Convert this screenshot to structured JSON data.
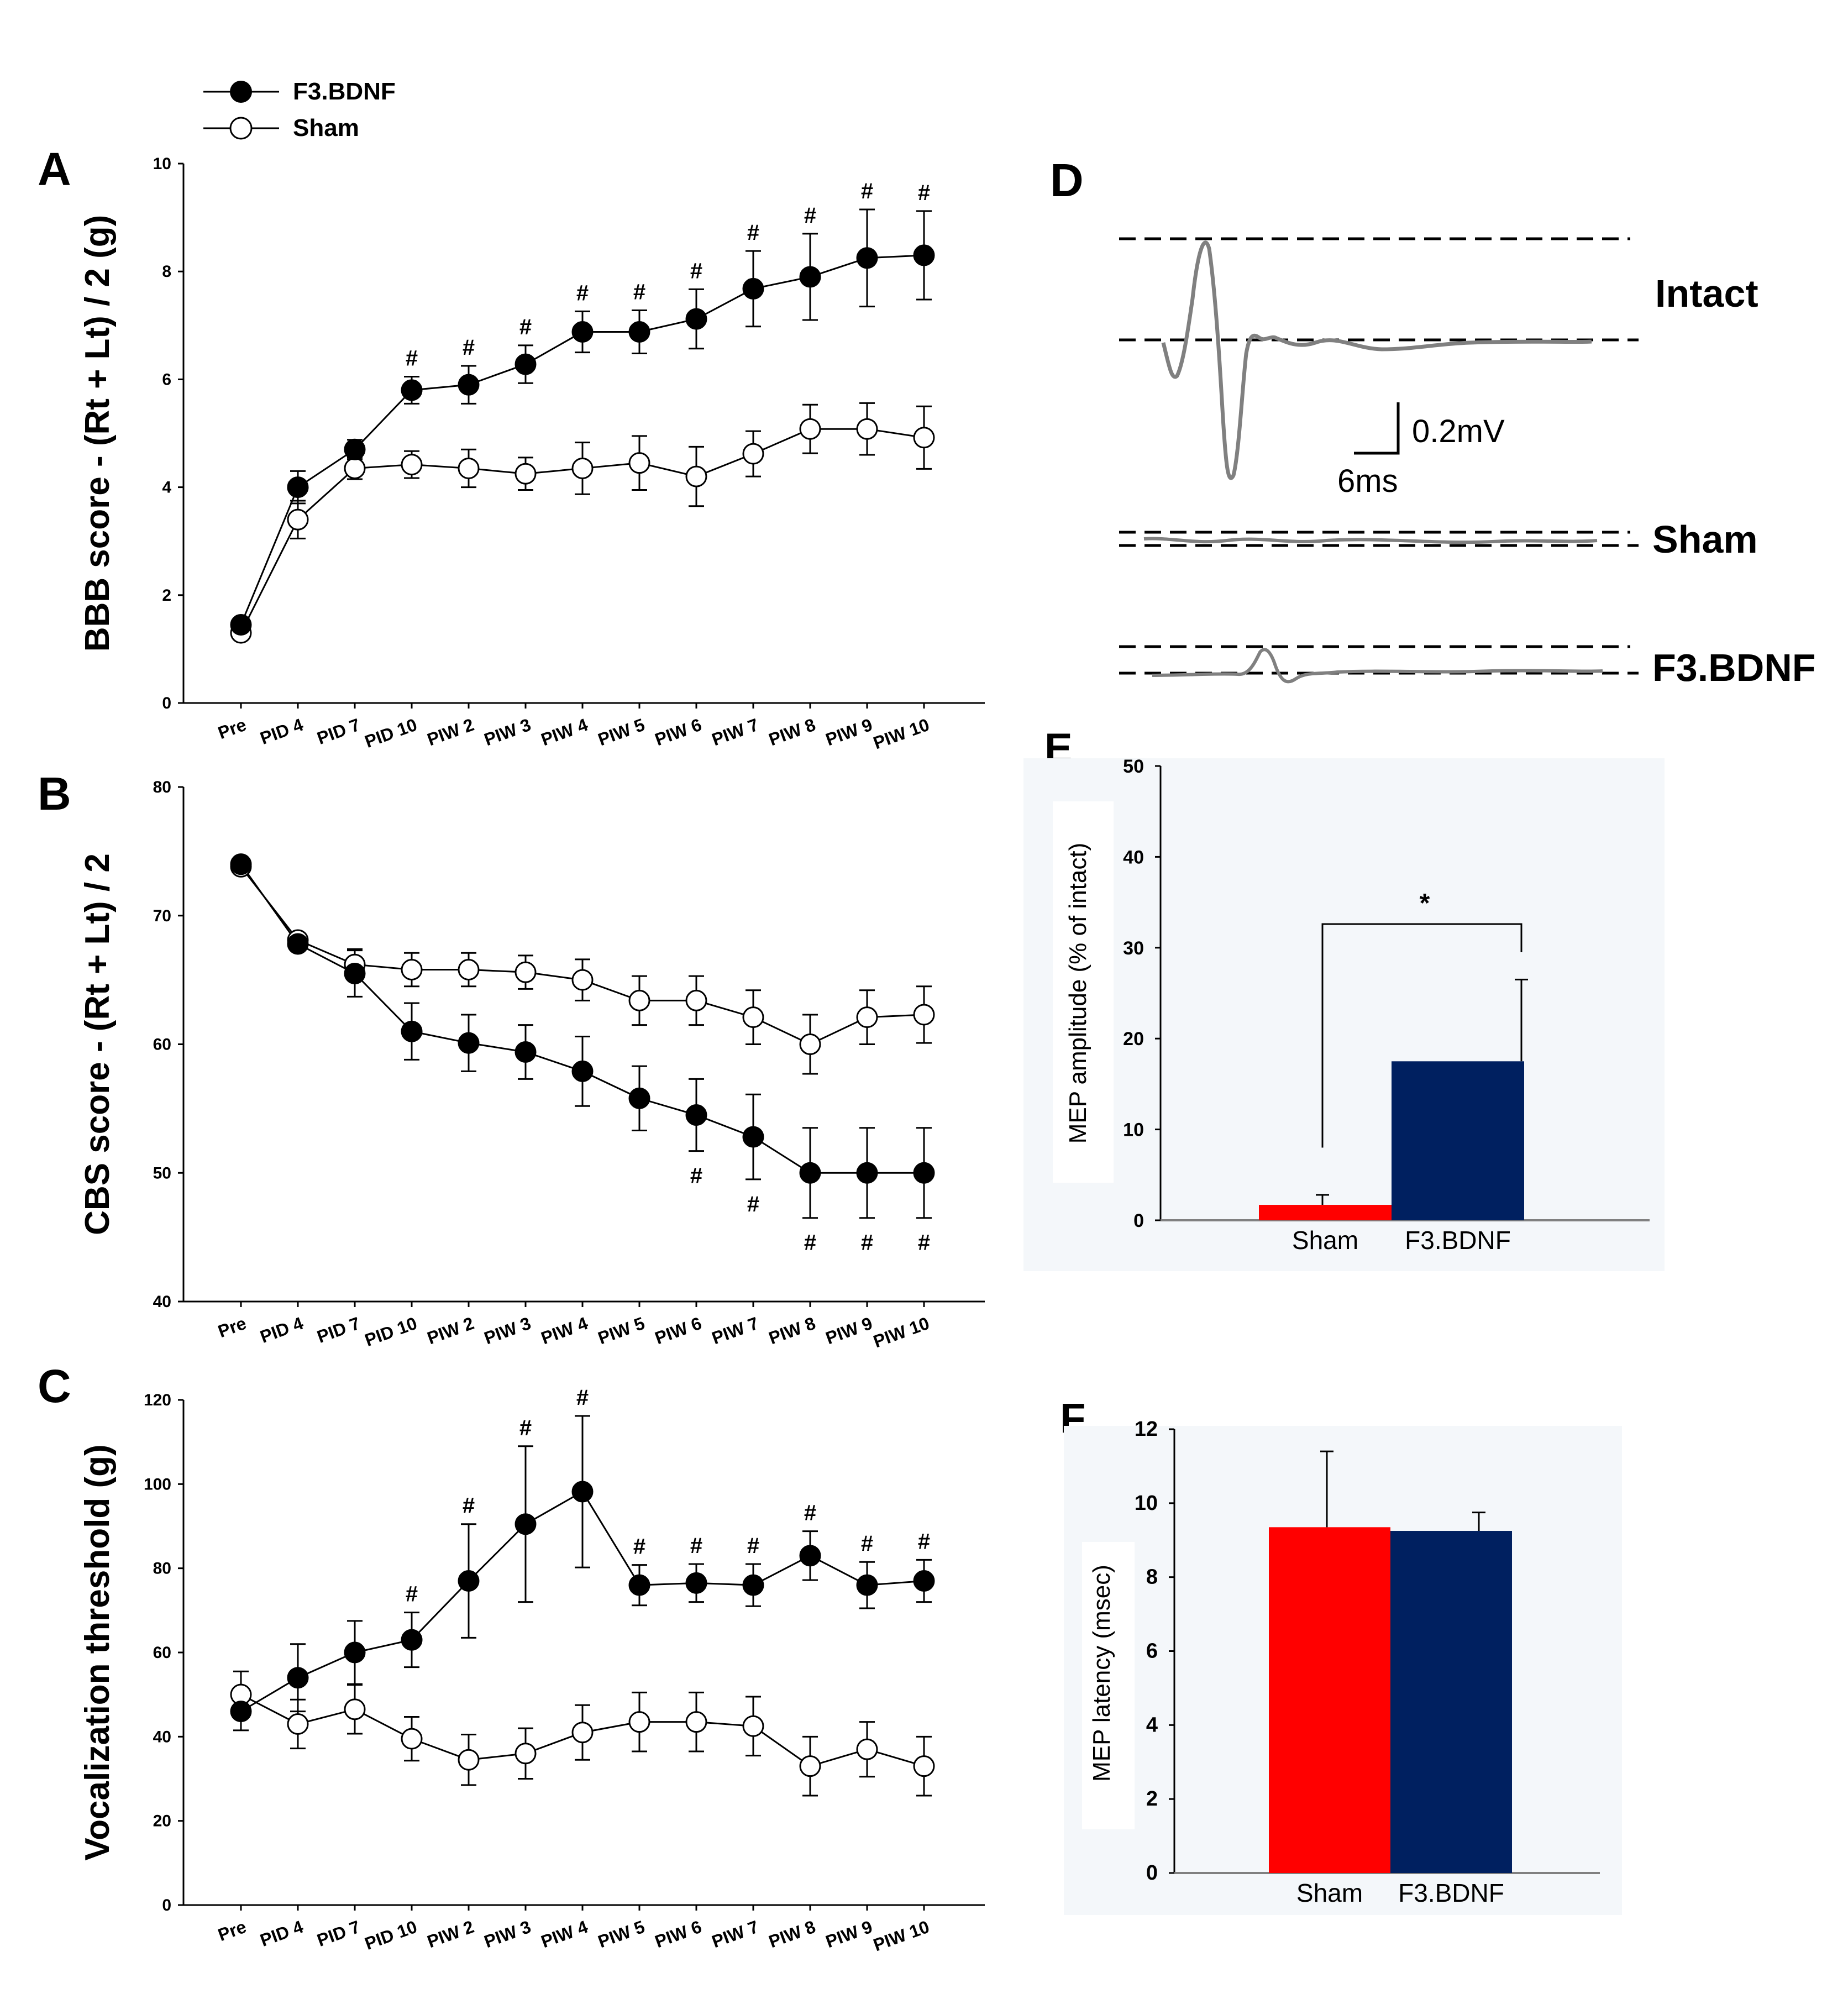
{
  "legend": {
    "entries": [
      {
        "label": "F3.BDNF",
        "marker": "filled"
      },
      {
        "label": "Sham",
        "marker": "open"
      }
    ]
  },
  "colors": {
    "sham": "#ff0000",
    "bdnf": "#002060",
    "ink": "#000000",
    "trace": "#808080"
  },
  "chart_data": [
    {
      "panel": "A",
      "type": "line",
      "ylabel": "BBB score - (Rt + Lt) / 2 (g)",
      "ylim": [
        0,
        10
      ],
      "yticks": [
        0,
        2,
        4,
        6,
        8,
        10
      ],
      "categories": [
        "Pre",
        "PID 4",
        "PID 7",
        "PID 10",
        "PIW 2",
        "PIW 3",
        "PIW 4",
        "PIW 5",
        "PIW 6",
        "PIW 7",
        "PIW 8",
        "PIW 9",
        "PIW 10"
      ],
      "series": [
        {
          "name": "F3.BDNF",
          "marker": "filled",
          "values": [
            1.45,
            4.0,
            4.7,
            5.8,
            5.9,
            6.28,
            6.88,
            6.88,
            7.12,
            7.68,
            7.9,
            8.25,
            8.3
          ],
          "errors": [
            0.1,
            0.3,
            0.18,
            0.25,
            0.35,
            0.35,
            0.38,
            0.4,
            0.55,
            0.7,
            0.8,
            0.9,
            0.82
          ]
        },
        {
          "name": "Sham",
          "marker": "open",
          "values": [
            1.3,
            3.4,
            4.35,
            4.42,
            4.35,
            4.25,
            4.35,
            4.45,
            4.2,
            4.62,
            5.08,
            5.08,
            4.92
          ],
          "errors": [
            0.1,
            0.35,
            0.2,
            0.25,
            0.35,
            0.3,
            0.48,
            0.5,
            0.55,
            0.42,
            0.45,
            0.48,
            0.58
          ]
        }
      ],
      "markers": [
        {
          "index": 3,
          "text": "#"
        },
        {
          "index": 4,
          "text": "#"
        },
        {
          "index": 5,
          "text": "#"
        },
        {
          "index": 6,
          "text": "#"
        },
        {
          "index": 7,
          "text": "#"
        },
        {
          "index": 8,
          "text": "#"
        },
        {
          "index": 9,
          "text": "#"
        },
        {
          "index": 10,
          "text": "#"
        },
        {
          "index": 11,
          "text": "#"
        },
        {
          "index": 12,
          "text": "#"
        }
      ]
    },
    {
      "panel": "B",
      "type": "line",
      "ylabel": "CBS score - (Rt + Lt) / 2",
      "ylim": [
        40,
        80
      ],
      "yticks": [
        40,
        50,
        60,
        70,
        80
      ],
      "categories": [
        "Pre",
        "PID 4",
        "PID 7",
        "PID 10",
        "PIW 2",
        "PIW 3",
        "PIW 4",
        "PIW 5",
        "PIW 6",
        "PIW 7",
        "PIW 8",
        "PIW 9",
        "PIW 10"
      ],
      "series": [
        {
          "name": "F3.BDNF",
          "marker": "filled",
          "values": [
            74.0,
            67.8,
            65.5,
            61.0,
            60.1,
            59.4,
            57.9,
            55.8,
            54.5,
            52.8,
            50.0,
            50.0,
            50.0
          ],
          "errors": [
            0.4,
            0.5,
            1.8,
            2.2,
            2.2,
            2.1,
            2.7,
            2.5,
            2.8,
            3.3,
            3.5,
            3.5,
            3.5
          ]
        },
        {
          "name": "Sham",
          "marker": "open",
          "values": [
            73.8,
            68.1,
            66.2,
            65.8,
            65.8,
            65.6,
            65.0,
            63.4,
            63.4,
            62.1,
            60.0,
            62.1,
            62.3
          ],
          "errors": [
            0.4,
            0.4,
            1.2,
            1.3,
            1.3,
            1.3,
            1.6,
            1.9,
            1.9,
            2.1,
            2.3,
            2.1,
            2.2
          ]
        }
      ],
      "markers": [
        {
          "index": 8,
          "text": "#"
        },
        {
          "index": 9,
          "text": "#"
        },
        {
          "index": 10,
          "text": "#"
        },
        {
          "index": 11,
          "text": "#"
        },
        {
          "index": 12,
          "text": "#"
        }
      ]
    },
    {
      "panel": "C",
      "type": "line",
      "ylabel": "Vocalization threshold (g)",
      "ylim": [
        0,
        120
      ],
      "yticks": [
        0,
        20,
        40,
        60,
        80,
        100,
        120
      ],
      "categories": [
        "Pre",
        "PID 4",
        "PID 7",
        "PID 10",
        "PIW 2",
        "PIW 3",
        "PIW 4",
        "PIW 5",
        "PIW 6",
        "PIW 7",
        "PIW 8",
        "PIW 9",
        "PIW 10"
      ],
      "series": [
        {
          "name": "F3.BDNF",
          "marker": "filled",
          "values": [
            46,
            54,
            60,
            63,
            77,
            90.5,
            98.2,
            76,
            76.5,
            76,
            83,
            76,
            77
          ],
          "errors": [
            4.5,
            8,
            7.5,
            6.5,
            13.5,
            18.5,
            18,
            4.8,
            4.5,
            5,
            5.8,
            5.5,
            5
          ]
        },
        {
          "name": "Sham",
          "marker": "open",
          "values": [
            50,
            43,
            46.5,
            39.5,
            34.5,
            36,
            41,
            43.5,
            43.5,
            42.5,
            33,
            37,
            33
          ],
          "errors": [
            5.5,
            5.8,
            5.8,
            5.2,
            6,
            6,
            6.5,
            7,
            7,
            7,
            7,
            6.5,
            7
          ]
        }
      ],
      "markers": [
        {
          "index": 3,
          "text": "#"
        },
        {
          "index": 4,
          "text": "#"
        },
        {
          "index": 5,
          "text": "#"
        },
        {
          "index": 6,
          "text": "#"
        },
        {
          "index": 7,
          "text": "#"
        },
        {
          "index": 8,
          "text": "#"
        },
        {
          "index": 9,
          "text": "#"
        },
        {
          "index": 10,
          "text": "#"
        },
        {
          "index": 11,
          "text": "#"
        },
        {
          "index": 12,
          "text": "#"
        }
      ]
    },
    {
      "panel": "D",
      "type": "line",
      "traces": [
        "Intact",
        "Sham",
        "F3.BDNF"
      ],
      "scale_bar": {
        "amplitude": "0.2mV",
        "time": "6ms"
      }
    },
    {
      "panel": "E",
      "type": "bar",
      "ylabel": "MEP amplitude (% of intact)",
      "ylim": [
        0,
        50
      ],
      "yticks": [
        0,
        10,
        20,
        30,
        40,
        50
      ],
      "categories": [
        "Sham",
        "F3.BDNF"
      ],
      "values": [
        1.7,
        17.5
      ],
      "errors": [
        1.1,
        9.0
      ],
      "significance": "*"
    },
    {
      "panel": "F",
      "type": "bar",
      "ylabel": "MEP latency (msec)",
      "ylim": [
        0,
        12
      ],
      "yticks": [
        0,
        2,
        4,
        6,
        8,
        10,
        12
      ],
      "categories": [
        "Sham",
        "F3.BDNF"
      ],
      "values": [
        9.35,
        9.25
      ],
      "errors": [
        2.05,
        0.5
      ]
    }
  ]
}
